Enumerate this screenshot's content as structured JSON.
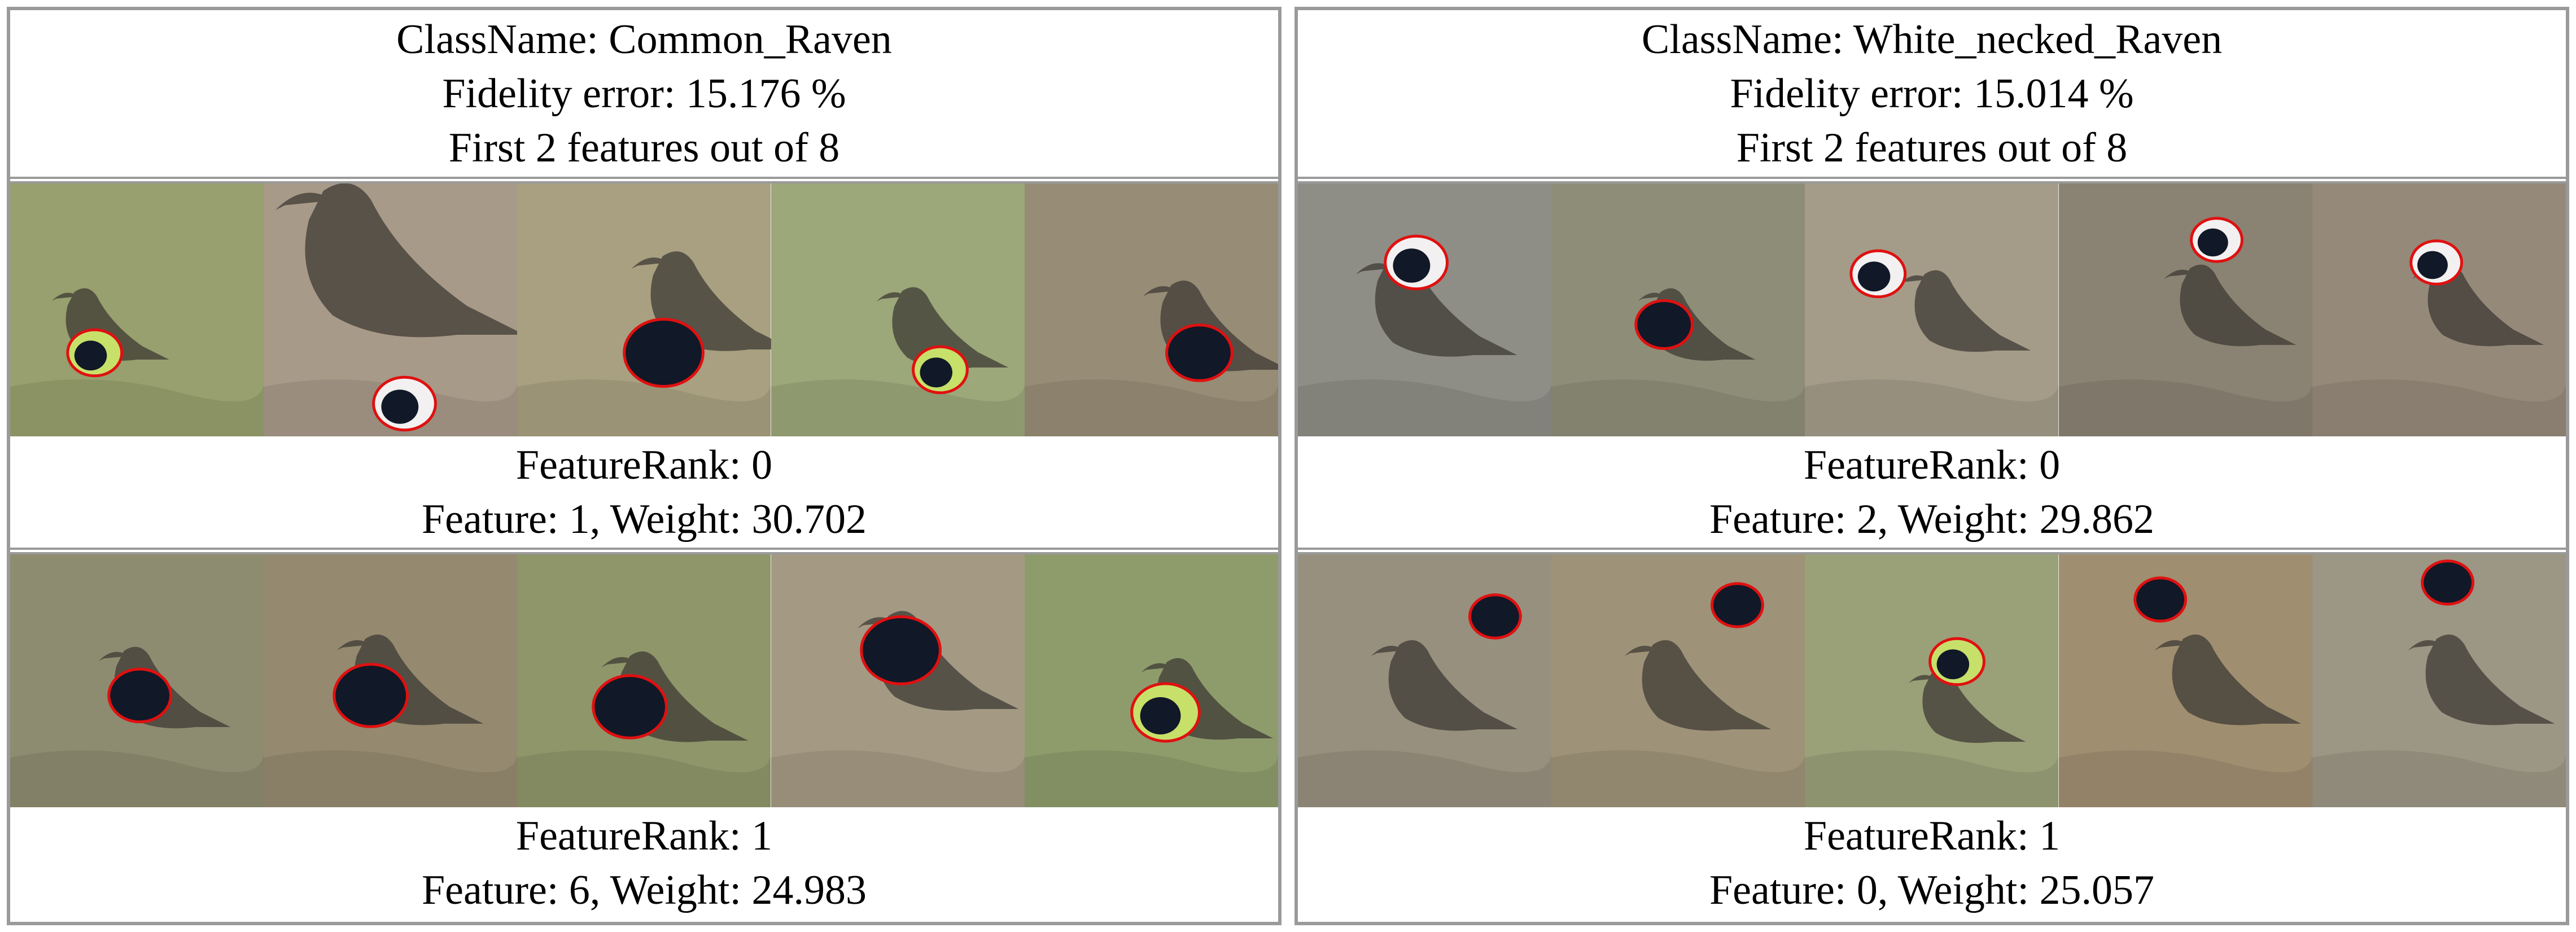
{
  "panels": [
    {
      "class_name": "ClassName: Common_Raven",
      "fidelity_error": "Fidelity error: 15.176 %",
      "features_summary": "First 2 features out of 8",
      "rows": [
        {
          "rank_label": "FeatureRank: 0",
          "feature_label": "Feature: 1, Weight: 30.702",
          "thumbnails": [
            {
              "subject": "raven-on-grass",
              "bg": "#97a06e"
            },
            {
              "subject": "raven-closeup",
              "bg": "#a89a88"
            },
            {
              "subject": "raven-on-dirt",
              "bg": "#a8a080"
            },
            {
              "subject": "raven-on-grass-green",
              "bg": "#9ca77a"
            },
            {
              "subject": "raven-on-rock",
              "bg": "#978c76"
            }
          ]
        },
        {
          "rank_label": "FeatureRank: 1",
          "feature_label": "Feature: 6, Weight: 24.983",
          "thumbnails": [
            {
              "subject": "raven-in-grass",
              "bg": "#8e8c70"
            },
            {
              "subject": "raven-on-ground",
              "bg": "#958a70"
            },
            {
              "subject": "raven-on-grass-field",
              "bg": "#8f966a"
            },
            {
              "subject": "raven-by-sign",
              "bg": "#a49a84"
            },
            {
              "subject": "raven-on-wood",
              "bg": "#8e9c6c"
            }
          ]
        }
      ]
    },
    {
      "class_name": "ClassName: White_necked_Raven",
      "fidelity_error": "Fidelity error: 15.014 %",
      "features_summary": "First 2 features out of 8",
      "rows": [
        {
          "rank_label": "FeatureRank: 0",
          "feature_label": "Feature: 2, Weight: 29.862",
          "thumbnails": [
            {
              "subject": "raven-on-perch",
              "bg": "#8e8e86"
            },
            {
              "subject": "raven-in-tree",
              "bg": "#8e8e78"
            },
            {
              "subject": "raven-on-branch",
              "bg": "#a49c88"
            },
            {
              "subject": "raven-on-stump",
              "bg": "#8a8272"
            },
            {
              "subject": "raven-standing",
              "bg": "#95897a"
            }
          ]
        },
        {
          "rank_label": "FeatureRank: 1",
          "feature_label": "Feature: 0, Weight: 25.057",
          "thumbnails": [
            {
              "subject": "raven-on-rock-head",
              "bg": "#97907e"
            },
            {
              "subject": "raven-on-hill",
              "bg": "#9e9278"
            },
            {
              "subject": "raven-grass-head",
              "bg": "#9aa078"
            },
            {
              "subject": "raven-on-post",
              "bg": "#a08e70"
            },
            {
              "subject": "raven-by-sign-head",
              "bg": "#9c9684"
            }
          ]
        }
      ]
    }
  ],
  "colors": {
    "border": "#9a9a9a",
    "segment_outline": "#e01010",
    "highlight_green": "#c6e06a"
  }
}
